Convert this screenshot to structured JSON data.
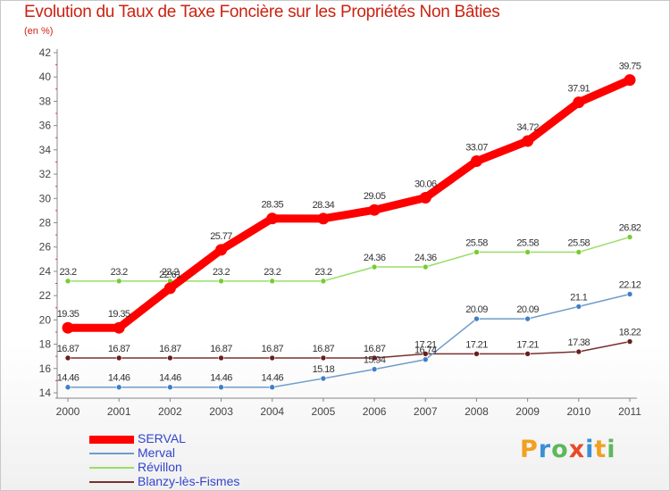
{
  "title": "Evolution du Taux de Taxe Foncière sur les Propriétés Non Bâties",
  "unit": "(en %)",
  "logo": {
    "text": "Proxiti",
    "letters": [
      "P",
      "r",
      "o",
      "x",
      "i",
      "t",
      "i"
    ],
    "colors": [
      "#f2a020",
      "#3a8fd6",
      "#5cb85c",
      "#e84a2a",
      "#3a8fd6",
      "#f2a020",
      "#5cb85c"
    ]
  },
  "chart_data": {
    "type": "line",
    "categories": [
      "2000",
      "2001",
      "2002",
      "2003",
      "2004",
      "2005",
      "2006",
      "2007",
      "2008",
      "2009",
      "2010",
      "2011"
    ],
    "ylim": [
      14,
      42
    ],
    "yticks": [
      "14",
      "16",
      "18",
      "20",
      "22",
      "24",
      "26",
      "28",
      "30",
      "32",
      "34",
      "36",
      "38",
      "40",
      "42"
    ],
    "grid": false,
    "legend_position": "bottom-left",
    "series": [
      {
        "name": "SERVAL",
        "color": "#ff0000",
        "values": [
          19.35,
          19.35,
          22.61,
          25.77,
          28.35,
          28.34,
          29.05,
          30.06,
          33.07,
          34.72,
          37.91,
          39.75
        ],
        "labels": [
          "19.35",
          "19.35",
          "22.61",
          "25.77",
          "28.35",
          "28.34",
          "29.05",
          "30.06",
          "33.07",
          "34.72",
          "37.91",
          "39.75"
        ]
      },
      {
        "name": "Merval",
        "color": "#6f9cc9",
        "marker": "#3f7fc7",
        "values": [
          14.46,
          14.46,
          14.46,
          14.46,
          14.46,
          15.18,
          15.94,
          16.74,
          20.09,
          20.09,
          21.1,
          22.12
        ],
        "labels": [
          "14.46",
          "14.46",
          "14.46",
          "14.46",
          "14.46",
          "15.18",
          "15.94",
          "16.74",
          "20.09",
          "20.09",
          "21.1",
          "22.12"
        ]
      },
      {
        "name": "Révillon",
        "color": "#99dd66",
        "marker": "#77cc33",
        "values": [
          23.2,
          23.2,
          23.2,
          23.2,
          23.2,
          23.2,
          24.36,
          24.36,
          25.58,
          25.58,
          25.58,
          26.82
        ],
        "labels": [
          "23.2",
          "23.2",
          "23.2",
          "23.2",
          "23.2",
          "23.2",
          "24.36",
          "24.36",
          "25.58",
          "25.58",
          "25.58",
          "26.82"
        ]
      },
      {
        "name": "Blanzy-lès-Fismes",
        "color": "#7a3030",
        "marker": "#6a1e1e",
        "values": [
          16.87,
          16.87,
          16.87,
          16.87,
          16.87,
          16.87,
          16.87,
          17.21,
          17.21,
          17.21,
          17.38,
          18.22
        ],
        "labels": [
          "16.87",
          "16.87",
          "16.87",
          "16.87",
          "16.87",
          "16.87",
          "16.87",
          "17.21",
          "17.21",
          "17.21",
          "17.38",
          "18.22"
        ]
      }
    ]
  }
}
